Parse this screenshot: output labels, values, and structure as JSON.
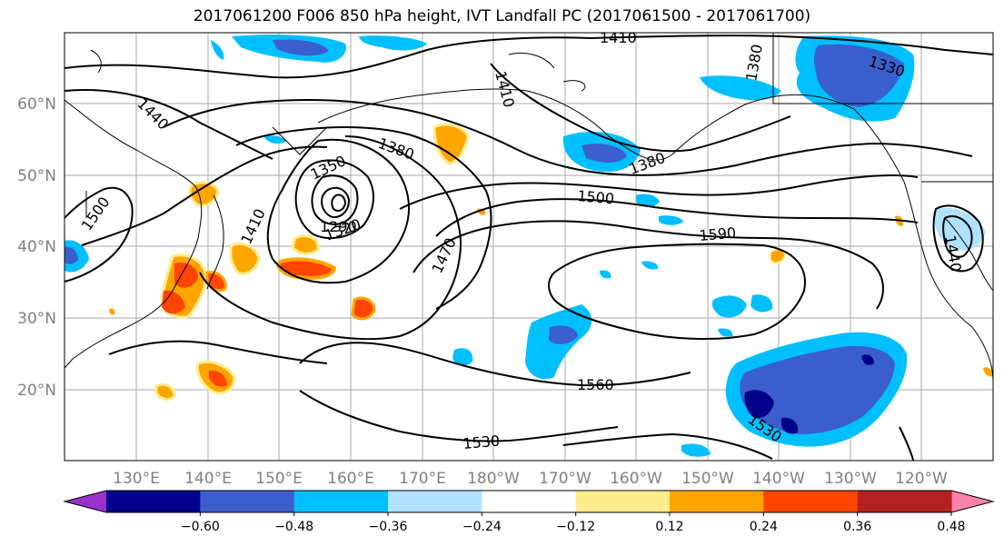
{
  "title": "2017061200 F006 850 hPa height, IVT Landfall PC (2017061500 - 2017061700)",
  "lat_labels": [
    "60°N",
    "50°N",
    "40°N",
    "30°N",
    "20°N"
  ],
  "lon_labels": [
    "130°E",
    "140°E",
    "150°E",
    "160°E",
    "170°E",
    "180°W",
    "170°W",
    "160°W",
    "150°W",
    "140°W",
    "130°W",
    "120°W"
  ],
  "contour_labels": [
    "1410",
    "1380",
    "1330",
    "1440",
    "1500",
    "1350",
    "1380",
    "1410",
    "1290",
    "1320",
    "1500",
    "1470",
    "1590",
    "1560",
    "1530",
    "1380",
    "1530",
    "1410",
    "1440"
  ],
  "colorbar": {
    "colors": [
      "#9932cc",
      "#00008b",
      "#3a5fcd",
      "#00bfff",
      "#b0e2ff",
      "#ffffff",
      "#ffec8b",
      "#ffa500",
      "#ff4500",
      "#b22222",
      "#ff82ab"
    ],
    "ticks": [
      "−0.60",
      "−0.48",
      "−0.36",
      "−0.24",
      "−0.12",
      "0.12",
      "0.24",
      "0.36",
      "0.48",
      "0.60"
    ]
  }
}
